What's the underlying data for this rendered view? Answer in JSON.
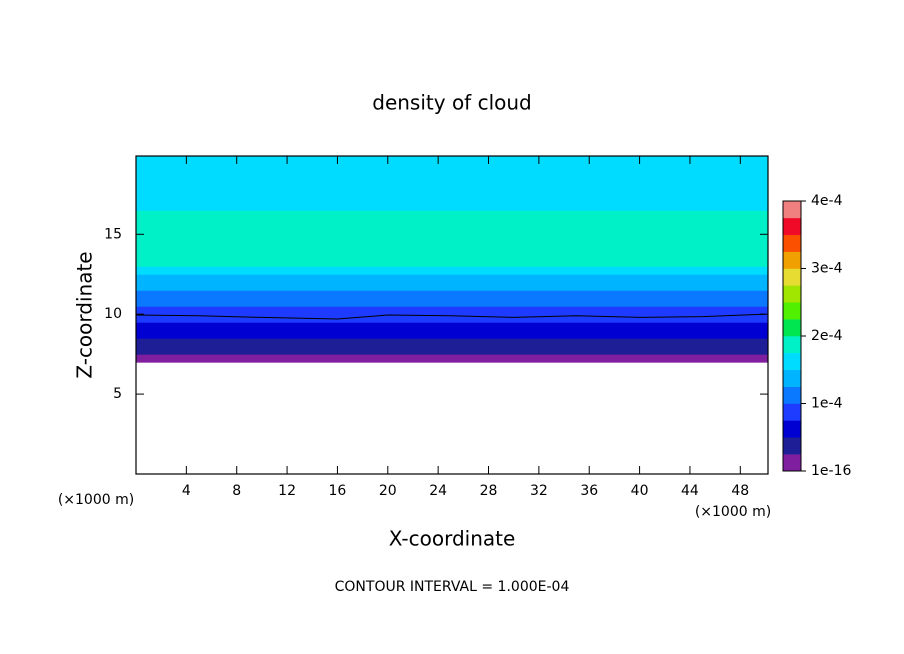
{
  "chart_data": {
    "type": "contour",
    "title": "density of cloud",
    "x_label": "X-coordinate",
    "y_label": "Z-coordinate",
    "x_unit": "(×1000 m)",
    "y_unit": "(×1000 m)",
    "footer": "CONTOUR INTERVAL = 1.000E-04",
    "xlim": [
      0,
      50.2
    ],
    "ylim": [
      0,
      19.9
    ],
    "xticks": [
      4,
      8,
      12,
      16,
      20,
      24,
      28,
      32,
      36,
      40,
      44,
      48
    ],
    "yticks": [
      5,
      10,
      15
    ],
    "profile": {
      "z": [
        7,
        7.5,
        8,
        8.5,
        9,
        9.5,
        10,
        10.5,
        11,
        11.5,
        12,
        12.5,
        13,
        14,
        15,
        16,
        16.5,
        17,
        17.5,
        18,
        19
      ],
      "density": [
        1e-05,
        3e-05,
        4e-05,
        5.5e-05,
        6.5e-05,
        8e-05,
        9e-05,
        0.000105,
        0.000115,
        0.00013,
        0.000145,
        0.00016,
        0.00018,
        0.000185,
        0.000185,
        0.00018,
        0.00017,
        0.00017,
        0.00016,
        0.000155,
        0.00016
      ]
    },
    "contour_line": {
      "x": [
        0,
        5,
        10,
        16,
        20,
        25,
        30,
        35,
        40,
        45,
        50
      ],
      "y": [
        9.95,
        9.9,
        9.8,
        9.7,
        9.95,
        9.9,
        9.8,
        9.9,
        9.8,
        9.85,
        10.0
      ]
    },
    "colorbar": {
      "levels": [
        0,
        2.5e-05,
        5e-05,
        7.5e-05,
        0.0001,
        0.000125,
        0.00015,
        0.000175,
        0.0002,
        0.000225,
        0.00025,
        0.000275,
        0.0003,
        0.000325,
        0.00035,
        0.000375,
        0.0004
      ],
      "colors": [
        "#801ea0",
        "#1e1e96",
        "#0000d2",
        "#1e3cff",
        "#0a78ff",
        "#00b4ff",
        "#00dcff",
        "#00f0c8",
        "#00e650",
        "#50f000",
        "#a0e600",
        "#e6dc32",
        "#f0a000",
        "#fa5000",
        "#f00a28",
        "#f08080"
      ],
      "ticks": [
        {
          "value": 1e-16,
          "label": "1e-16"
        },
        {
          "value": 0.0001,
          "label": "1e-4"
        },
        {
          "value": 0.0002,
          "label": "2e-4"
        },
        {
          "value": 0.0003,
          "label": "3e-4"
        },
        {
          "value": 0.0004,
          "label": "4e-4"
        }
      ]
    }
  }
}
